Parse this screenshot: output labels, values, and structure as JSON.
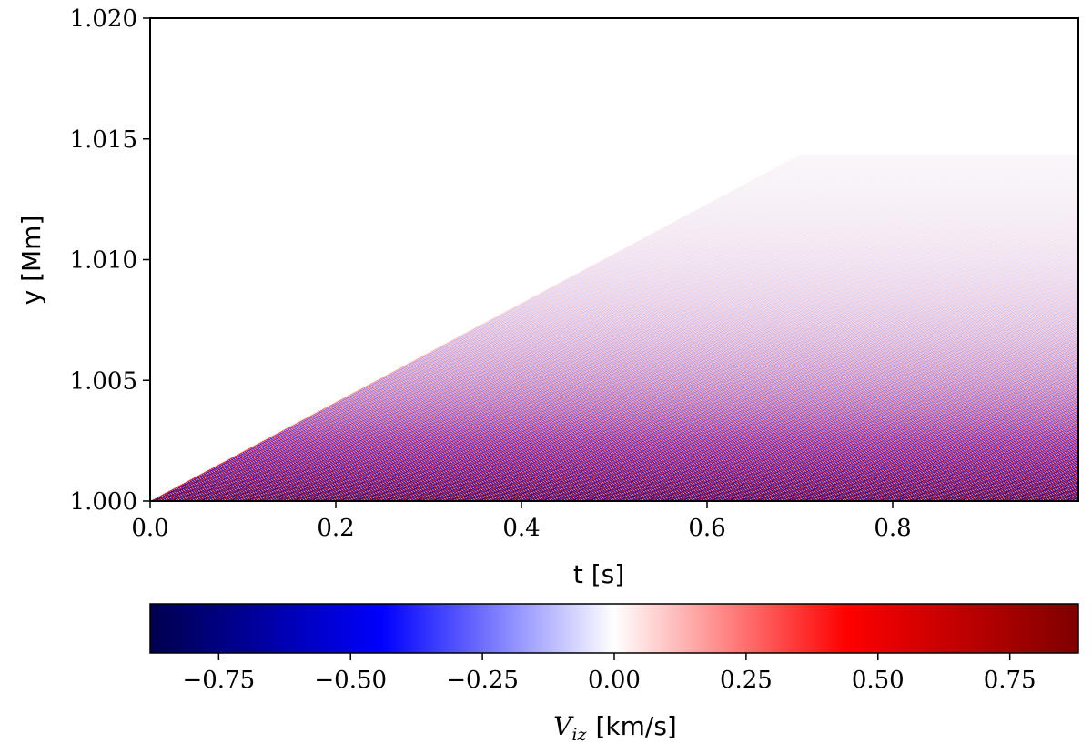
{
  "chart_data": {
    "type": "heatmap",
    "title": "",
    "xlabel": "t [s]",
    "ylabel": "y [Mm]",
    "xlim": [
      0.0,
      1.0
    ],
    "ylim": [
      1.0,
      1.02
    ],
    "x_ticks": [
      "0.0",
      "0.2",
      "0.4",
      "0.6",
      "0.8"
    ],
    "x_tick_values": [
      0.0,
      0.2,
      0.4,
      0.6,
      0.8
    ],
    "y_ticks": [
      "1.000",
      "1.005",
      "1.010",
      "1.015",
      "1.020"
    ],
    "y_tick_values": [
      1.0,
      1.005,
      1.01,
      1.015,
      1.02
    ],
    "field": {
      "wave_front_speed_Mm_per_s": 0.0205,
      "front_t_end": 0.7,
      "stripe_t_period": 0.00625,
      "amplitude_at_base_km_s": 0.88,
      "amplitude_decay_scale_Mm": 0.004,
      "grid": "off"
    },
    "colorbar": {
      "label_symbol": "V",
      "label_subscript": "iz",
      "label_unit": "[km/s]",
      "vmin": -0.88,
      "vmax": 0.88,
      "colormap": "seismic",
      "ticks": [
        "−0.75",
        "−0.50",
        "−0.25",
        "0.00",
        "0.25",
        "0.50",
        "0.75"
      ],
      "tick_values": [
        -0.75,
        -0.5,
        -0.25,
        0.0,
        0.25,
        0.5,
        0.75
      ],
      "orientation": "horizontal",
      "placement": "below"
    }
  }
}
